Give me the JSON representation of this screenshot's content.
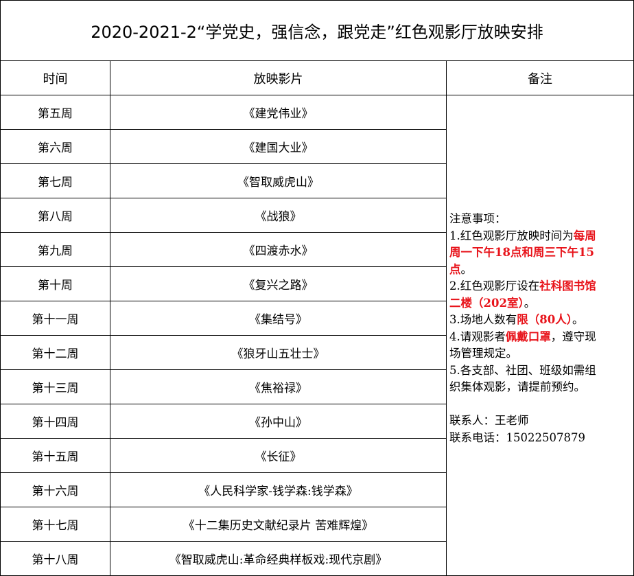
{
  "title": "2020-2021-2“学党史，强信念，跟党走”红色观影厅放映安排",
  "headers": {
    "time": "时间",
    "film": "放映影片",
    "notes": "备注"
  },
  "rows": [
    {
      "week": "第五周",
      "film": "《建党伟业》"
    },
    {
      "week": "第六周",
      "film": "《建国大业》"
    },
    {
      "week": "第七周",
      "film": "《智取威虎山》"
    },
    {
      "week": "第八周",
      "film": "《战狼》"
    },
    {
      "week": "第九周",
      "film": "《四渡赤水》"
    },
    {
      "week": "第十周",
      "film": "《复兴之路》"
    },
    {
      "week": "第十一周",
      "film": "《集结号》"
    },
    {
      "week": "第十二周",
      "film": "《狼牙山五壮士》"
    },
    {
      "week": "第十三周",
      "film": "《焦裕禄》"
    },
    {
      "week": "第十四周",
      "film": "《孙中山》"
    },
    {
      "week": "第十五周",
      "film": "《长征》"
    },
    {
      "week": "第十六周",
      "film": "《人民科学家-钱学森:钱学森》"
    },
    {
      "week": "第十七周",
      "film": "《十二集历史文献纪录片 苦难辉煌》"
    },
    {
      "week": "第十八周",
      "film": "《智取威虎山:革命经典样板戏:现代京剧》"
    }
  ],
  "highlight_color": "#e8141b",
  "notes_lines": [
    [
      {
        "t": "注意事项：",
        "red": false
      }
    ],
    [
      {
        "t": "1.红色观影厅放映时间为",
        "red": false
      },
      {
        "t": "每周",
        "red": true
      }
    ],
    [
      {
        "t": "周一下午18点和周三下午15",
        "red": true
      }
    ],
    [
      {
        "t": "点",
        "red": true
      },
      {
        "t": "。",
        "red": false
      }
    ],
    [
      {
        "t": "2.红色观影厅设在",
        "red": false
      },
      {
        "t": "社科图书馆",
        "red": true
      }
    ],
    [
      {
        "t": "二楼（202室）",
        "red": true
      },
      {
        "t": "。",
        "red": false
      }
    ],
    [
      {
        "t": "3.场地人数有",
        "red": false
      },
      {
        "t": "限（80人）",
        "red": true
      },
      {
        "t": "。",
        "red": false
      }
    ],
    [
      {
        "t": "4.请观影者",
        "red": false
      },
      {
        "t": "佩戴口罩",
        "red": true
      },
      {
        "t": "，遵守现",
        "red": false
      }
    ],
    [
      {
        "t": "场管理规定。",
        "red": false
      }
    ],
    [
      {
        "t": "5.各支部、社团、班级如需组",
        "red": false
      }
    ],
    [
      {
        "t": "织集体观影，请提前预约。",
        "red": false
      }
    ],
    [
      {
        "t": "",
        "red": false
      }
    ],
    [
      {
        "t": "联系人：王老师",
        "red": false
      }
    ],
    [
      {
        "t": "联系电话：15022507879",
        "red": false
      }
    ]
  ]
}
